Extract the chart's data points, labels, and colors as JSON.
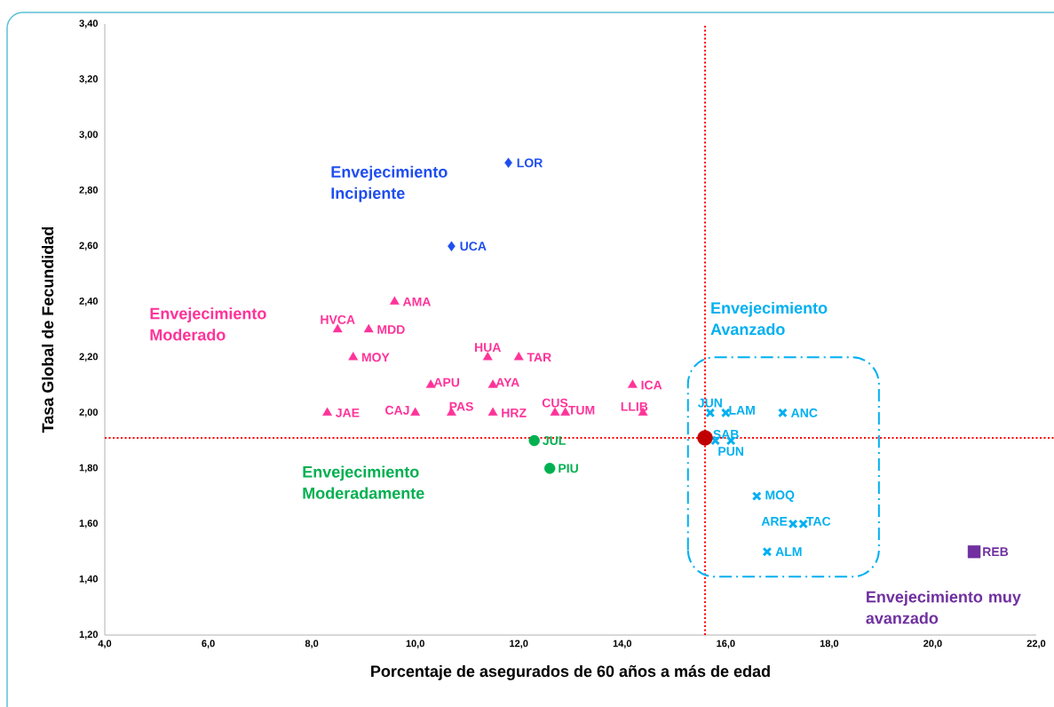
{
  "chart_data": {
    "type": "scatter",
    "xlabel": "Porcentaje de asegurados de 60 años a más de edad",
    "ylabel": "Tasa  Global de Fecundidad",
    "xlim": [
      4,
      22
    ],
    "ylim": [
      1.2,
      3.4
    ],
    "xticks": [
      {
        "value": 4,
        "label": "4,0"
      },
      {
        "value": 6,
        "label": "6,0"
      },
      {
        "value": 8,
        "label": "8,0"
      },
      {
        "value": 10,
        "label": "10,0"
      },
      {
        "value": 12,
        "label": "12,0"
      },
      {
        "value": 14,
        "label": "14,0"
      },
      {
        "value": 16,
        "label": "16,0"
      },
      {
        "value": 18,
        "label": "18,0"
      },
      {
        "value": 20,
        "label": "20,0"
      },
      {
        "value": 22,
        "label": "22,0"
      }
    ],
    "yticks": [
      {
        "value": 1.2,
        "label": "1,20"
      },
      {
        "value": 1.4,
        "label": "1,40"
      },
      {
        "value": 1.6,
        "label": "1,60"
      },
      {
        "value": 1.8,
        "label": "1,80"
      },
      {
        "value": 2.0,
        "label": "2,00"
      },
      {
        "value": 2.2,
        "label": "2,20"
      },
      {
        "value": 2.4,
        "label": "2,40"
      },
      {
        "value": 2.6,
        "label": "2,60"
      },
      {
        "value": 2.8,
        "label": "2,80"
      },
      {
        "value": 3.0,
        "label": "3,00"
      },
      {
        "value": 3.2,
        "label": "3,20"
      },
      {
        "value": 3.4,
        "label": "3,40"
      }
    ],
    "grid": false,
    "series": [
      {
        "name": "Envejecimiento Incipiente",
        "color": "#1f4ef0",
        "marker": "diamond",
        "x": [
          11.8,
          10.7
        ],
        "values": [
          2.9,
          2.6
        ]
      },
      {
        "name": "Envejecimiento Moderado",
        "color": "#ff3399",
        "marker": "triangle",
        "x": [
          9.6,
          8.5,
          9.1,
          8.8,
          11.4,
          12.0,
          10.3,
          11.5,
          14.2,
          8.3,
          10.0,
          10.7,
          11.5,
          12.7,
          12.9,
          14.4
        ],
        "values": [
          2.4,
          2.3,
          2.3,
          2.2,
          2.2,
          2.2,
          2.1,
          2.1,
          2.1,
          2.0,
          2.0,
          2.0,
          2.0,
          2.0,
          2.0,
          2.0
        ]
      },
      {
        "name": "Envejecimiento Moderadamente",
        "color": "#00b050",
        "marker": "circle",
        "x": [
          12.3,
          12.6
        ],
        "values": [
          1.9,
          1.8
        ]
      },
      {
        "name": "Envejecimiento Avanzado",
        "color": "#00b0f0",
        "marker": "cross",
        "x": [
          15.7,
          16.0,
          17.1,
          15.8,
          16.1,
          16.6,
          17.3,
          17.5,
          16.8
        ],
        "values": [
          2.0,
          2.0,
          2.0,
          1.9,
          1.9,
          1.7,
          1.6,
          1.6,
          1.5
        ]
      },
      {
        "name": "Envejecimiento muy avanzado",
        "color": "#7030a0",
        "marker": "square",
        "x": [
          20.8
        ],
        "values": [
          1.5
        ]
      },
      {
        "color": "#c00000",
        "marker": "circle",
        "x": [
          15.6
        ],
        "values": [
          1.91
        ]
      }
    ],
    "ref_lines": [
      {
        "axis": "x",
        "value": 15.6,
        "color": "#ff0000",
        "line_style": "dotted"
      },
      {
        "axis": "y",
        "value": 1.91,
        "color": "#ff0000",
        "line_style": "dotted"
      }
    ],
    "annotations": [
      {
        "text": "LOR",
        "x": 11.8,
        "y": 2.9
      },
      {
        "text": "UCA",
        "x": 10.7,
        "y": 2.6
      },
      {
        "text": "AMA",
        "x": 9.6,
        "y": 2.4
      },
      {
        "text": "HVCA",
        "x": 8.5,
        "y": 2.3
      },
      {
        "text": "MDD",
        "x": 9.1,
        "y": 2.3
      },
      {
        "text": "MOY",
        "x": 8.8,
        "y": 2.2
      },
      {
        "text": "HUA",
        "x": 11.4,
        "y": 2.2
      },
      {
        "text": "TAR",
        "x": 12.0,
        "y": 2.2
      },
      {
        "text": "APU",
        "x": 10.3,
        "y": 2.1
      },
      {
        "text": "AYA",
        "x": 11.5,
        "y": 2.1
      },
      {
        "text": "ICA",
        "x": 14.2,
        "y": 2.1
      },
      {
        "text": "JAE",
        "x": 8.3,
        "y": 2.0
      },
      {
        "text": "CAJ",
        "x": 10.0,
        "y": 2.0
      },
      {
        "text": "PAS",
        "x": 10.7,
        "y": 2.0
      },
      {
        "text": "HRZ",
        "x": 11.5,
        "y": 2.0
      },
      {
        "text": "CUS",
        "x": 12.7,
        "y": 2.0
      },
      {
        "text": "TUM",
        "x": 12.9,
        "y": 2.0
      },
      {
        "text": "LLIB",
        "x": 14.4,
        "y": 2.0
      },
      {
        "text": "JUL",
        "x": 12.3,
        "y": 1.9
      },
      {
        "text": "PIU",
        "x": 12.6,
        "y": 1.8
      },
      {
        "text": "JUN",
        "x": 15.7,
        "y": 2.0
      },
      {
        "text": "LAM",
        "x": 16.0,
        "y": 2.0
      },
      {
        "text": "ANC",
        "x": 17.1,
        "y": 2.0
      },
      {
        "text": "SAB",
        "x": 15.8,
        "y": 1.9
      },
      {
        "text": "PUN",
        "x": 16.1,
        "y": 1.9
      },
      {
        "text": "MOQ",
        "x": 16.6,
        "y": 1.7
      },
      {
        "text": "ARE",
        "x": 17.3,
        "y": 1.6
      },
      {
        "text": "TAC",
        "x": 17.5,
        "y": 1.6
      },
      {
        "text": "ALM",
        "x": 16.8,
        "y": 1.5
      },
      {
        "text": "REB",
        "x": 20.8,
        "y": 1.5
      }
    ]
  }
}
